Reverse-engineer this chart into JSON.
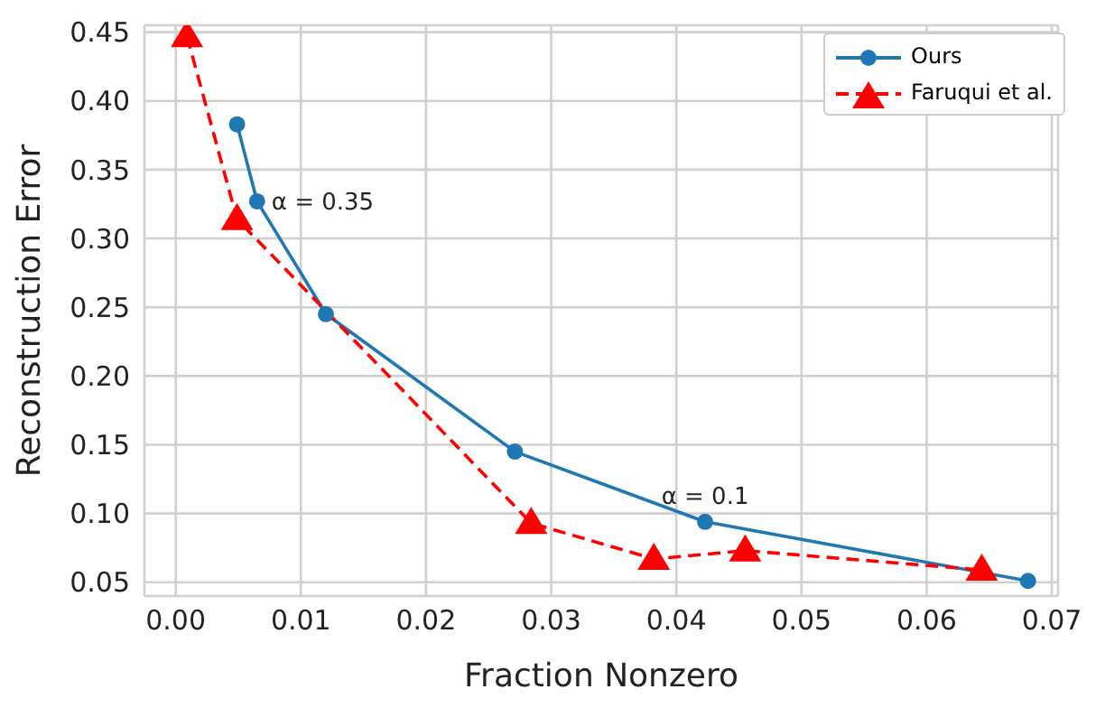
{
  "chart_data": {
    "type": "line",
    "xlabel": "Fraction Nonzero",
    "ylabel": "Reconstruction Error",
    "xlim": [
      -0.0025,
      0.0705
    ],
    "ylim": [
      0.04,
      0.455
    ],
    "xticks": [
      {
        "value": 0,
        "label": "0.00"
      },
      {
        "value": 0.01,
        "label": "0.01"
      },
      {
        "value": 0.02,
        "label": "0.02"
      },
      {
        "value": 0.03,
        "label": "0.03"
      },
      {
        "value": 0.04,
        "label": "0.04"
      },
      {
        "value": 0.05,
        "label": "0.05"
      },
      {
        "value": 0.06,
        "label": "0.06"
      },
      {
        "value": 0.07,
        "label": "0.07"
      }
    ],
    "yticks": [
      {
        "value": 0.05,
        "label": "0.05"
      },
      {
        "value": 0.1,
        "label": "0.10"
      },
      {
        "value": 0.15,
        "label": "0.15"
      },
      {
        "value": 0.2,
        "label": "0.20"
      },
      {
        "value": 0.25,
        "label": "0.25"
      },
      {
        "value": 0.3,
        "label": "0.30"
      },
      {
        "value": 0.35,
        "label": "0.35"
      },
      {
        "value": 0.4,
        "label": "0.40"
      },
      {
        "value": 0.45,
        "label": "0.45"
      }
    ],
    "grid": true,
    "legend": "top right",
    "series": [
      {
        "name": "Ours",
        "color": "#1f77b4",
        "marker": "circle",
        "line_style": "solid",
        "x": [
          0.0049,
          0.0065,
          0.012,
          0.0271,
          0.0423,
          0.0681
        ],
        "values": [
          0.383,
          0.327,
          0.245,
          0.145,
          0.094,
          0.051
        ]
      },
      {
        "name": "Faruqui et al.",
        "color": "#ff0000",
        "marker": "triangle",
        "line_style": "dashed",
        "x": [
          0.0009,
          0.0049,
          0.0284,
          0.0382,
          0.0455,
          0.0644
        ],
        "values": [
          0.447,
          0.314,
          0.093,
          0.067,
          0.073,
          0.059
        ]
      }
    ],
    "annotations": [
      {
        "text": "α = 0.35",
        "x": 0.0065,
        "y": 0.327
      },
      {
        "text": "α = 0.1",
        "x": 0.0423,
        "y": 0.094
      }
    ]
  }
}
